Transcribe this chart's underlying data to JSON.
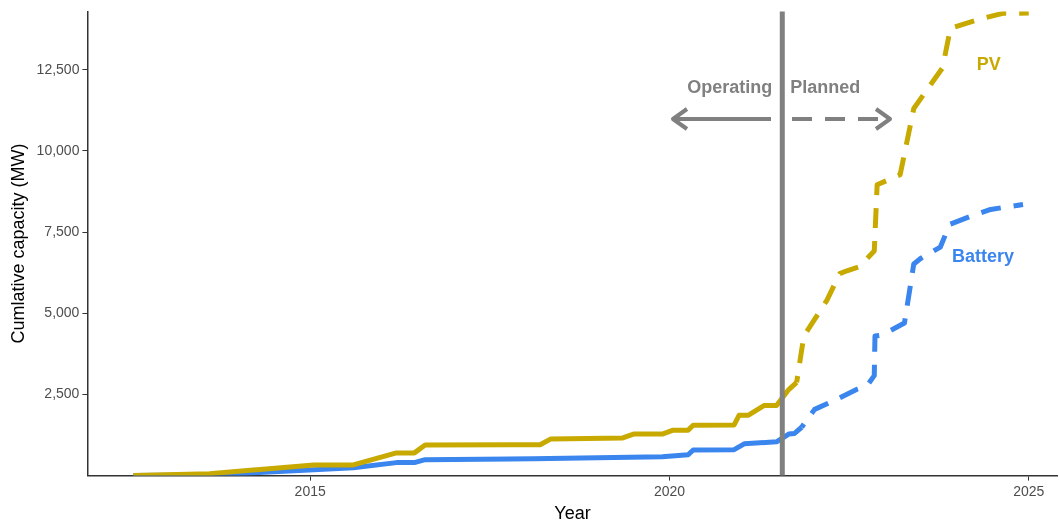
{
  "chart_data": {
    "type": "line",
    "xlabel": "Year",
    "ylabel": "Cumlative capacity (MW)",
    "xlim": [
      2011.9,
      2025.4
    ],
    "xticks": [
      2015,
      2020,
      2025
    ],
    "ylim": [
      0,
      14300
    ],
    "yticks": [
      {
        "value": 2500,
        "label": "2,500"
      },
      {
        "value": 5000,
        "label": "5,000"
      },
      {
        "value": 7500,
        "label": "7,500"
      },
      {
        "value": 10000,
        "label": "10,000"
      },
      {
        "value": 12500,
        "label": "12,500"
      }
    ],
    "grid": false,
    "legend": false,
    "marker": "none",
    "ref_lines": [
      {
        "axis": "x",
        "value": 2021.57,
        "color": "#808080"
      }
    ],
    "annotations": [
      "Operating",
      "Planned"
    ],
    "series": [
      {
        "color": "#c8a900",
        "line_style": "solid",
        "x": [
          2012.54,
          2013.6,
          2015.05,
          2015.6,
          2016.2,
          2016.45,
          2016.6,
          2018.2,
          2018.35,
          2019.35,
          2019.5,
          2019.9,
          2020.05,
          2020.26,
          2020.33,
          2020.9,
          2020.97,
          2021.1,
          2021.32,
          2021.49,
          2021.66,
          2021.77
        ],
        "values": [
          0,
          60,
          330,
          330,
          700,
          700,
          940,
          950,
          1130,
          1160,
          1280,
          1280,
          1400,
          1400,
          1550,
          1560,
          1860,
          1860,
          2160,
          2160,
          2650,
          2870
        ]
      },
      {
        "name": "PV",
        "color": "#c8a900",
        "line_style": "dashed",
        "x": [
          2021.77,
          2021.87,
          2022.19,
          2022.37,
          2022.47,
          2022.64,
          2022.85,
          2022.89,
          2023.21,
          2023.4,
          2023.8,
          2023.91,
          2024.31,
          2024.64,
          2025.0
        ],
        "values": [
          2870,
          4300,
          5400,
          6220,
          6310,
          6430,
          6920,
          8960,
          9270,
          11310,
          12560,
          13780,
          14060,
          14240,
          14250
        ]
      },
      {
        "color": "#3a85ee",
        "line_style": "solid",
        "x": [
          2012.54,
          2013.6,
          2015.05,
          2015.6,
          2016.2,
          2016.45,
          2016.6,
          2018.1,
          2019.9,
          2020.26,
          2020.33,
          2020.9,
          2021.04,
          2021.49,
          2021.66,
          2021.74,
          2021.84
        ],
        "values": [
          0,
          20,
          180,
          240,
          400,
          400,
          490,
          520,
          580,
          640,
          790,
          800,
          980,
          1040,
          1280,
          1300,
          1490
        ]
      },
      {
        "name": "Battery",
        "color": "#3a85ee",
        "line_style": "dashed",
        "x": [
          2021.84,
          2022.02,
          2022.29,
          2022.61,
          2022.75,
          2022.85,
          2022.86,
          2022.96,
          2023.27,
          2023.4,
          2023.49,
          2023.77,
          2023.9,
          2024.19,
          2024.47,
          2024.92
        ],
        "values": [
          1490,
          2040,
          2310,
          2660,
          2770,
          3080,
          4300,
          4330,
          4700,
          6520,
          6680,
          7040,
          7740,
          7990,
          8200,
          8350
        ]
      }
    ]
  }
}
